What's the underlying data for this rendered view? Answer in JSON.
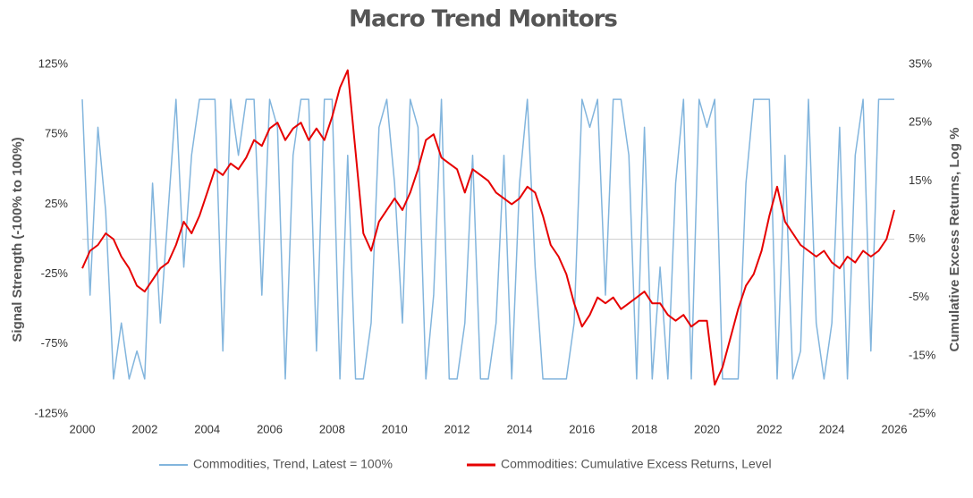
{
  "chart_data": {
    "type": "line",
    "title": "Macro Trend Monitors",
    "ylabel": "Signal Strength (-100% to 100%)",
    "y2label": "Cumulative Excess Returns, Log %",
    "xlim": [
      2000,
      2026
    ],
    "xticks": [
      2000,
      2002,
      2004,
      2006,
      2008,
      2010,
      2012,
      2014,
      2016,
      2018,
      2020,
      2022,
      2024,
      2026
    ],
    "ylim": [
      -125,
      125
    ],
    "yticks": [
      {
        "value": -125,
        "label": "-125%"
      },
      {
        "value": -75,
        "label": "-75%"
      },
      {
        "value": -25,
        "label": "-25%"
      },
      {
        "value": 25,
        "label": "25%"
      },
      {
        "value": 75,
        "label": "75%"
      },
      {
        "value": 125,
        "label": "125%"
      }
    ],
    "y2lim": [
      -25,
      35
    ],
    "y2ticks": [
      {
        "value": -25,
        "label": "-25%"
      },
      {
        "value": -15,
        "label": "-15%"
      },
      {
        "value": -5,
        "label": "-5%"
      },
      {
        "value": 5,
        "label": "5%"
      },
      {
        "value": 15,
        "label": "15%"
      },
      {
        "value": 25,
        "label": "25%"
      },
      {
        "value": 35,
        "label": "35%"
      }
    ],
    "legend": "bottom",
    "x": [
      2000,
      2000.25,
      2000.5,
      2000.75,
      2001,
      2001.25,
      2001.5,
      2001.75,
      2002,
      2002.25,
      2002.5,
      2002.75,
      2003,
      2003.25,
      2003.5,
      2003.75,
      2004,
      2004.25,
      2004.5,
      2004.75,
      2005,
      2005.25,
      2005.5,
      2005.75,
      2006,
      2006.25,
      2006.5,
      2006.75,
      2007,
      2007.25,
      2007.5,
      2007.75,
      2008,
      2008.25,
      2008.5,
      2008.75,
      2009,
      2009.25,
      2009.5,
      2009.75,
      2010,
      2010.25,
      2010.5,
      2010.75,
      2011,
      2011.25,
      2011.5,
      2011.75,
      2012,
      2012.25,
      2012.5,
      2012.75,
      2013,
      2013.25,
      2013.5,
      2013.75,
      2014,
      2014.25,
      2014.5,
      2014.75,
      2015,
      2015.25,
      2015.5,
      2015.75,
      2016,
      2016.25,
      2016.5,
      2016.75,
      2017,
      2017.25,
      2017.5,
      2017.75,
      2018,
      2018.25,
      2018.5,
      2018.75,
      2019,
      2019.25,
      2019.5,
      2019.75,
      2020,
      2020.25,
      2020.5,
      2020.75,
      2021,
      2021.25,
      2021.5,
      2021.75,
      2022,
      2022.25,
      2022.5,
      2022.75,
      2023,
      2023.25,
      2023.5,
      2023.75,
      2024,
      2024.25,
      2024.5,
      2024.75,
      2025,
      2025.25,
      2025.5,
      2025.75,
      2026
    ],
    "series": [
      {
        "name": "Commodities, Trend, Latest = 100%",
        "color": "#82b5dd",
        "axis": "y",
        "values": [
          100,
          -40,
          80,
          20,
          -100,
          -60,
          -100,
          -80,
          -100,
          40,
          -60,
          20,
          100,
          -20,
          60,
          100,
          100,
          100,
          -80,
          100,
          60,
          100,
          100,
          -40,
          100,
          80,
          -100,
          60,
          100,
          100,
          -80,
          100,
          100,
          -100,
          60,
          -100,
          -100,
          -60,
          80,
          100,
          40,
          -60,
          100,
          80,
          -100,
          -40,
          100,
          -100,
          -100,
          -60,
          60,
          -100,
          -100,
          -60,
          60,
          -100,
          40,
          100,
          -20,
          -100,
          -100,
          -100,
          -100,
          -60,
          100,
          80,
          100,
          -40,
          100,
          100,
          60,
          -100,
          80,
          -100,
          -20,
          -100,
          40,
          100,
          -100,
          100,
          80,
          100,
          -100,
          -100,
          -100,
          40,
          100,
          100,
          100,
          -100,
          60,
          -100,
          -80,
          100,
          -60,
          -100,
          -60,
          80,
          -100,
          60,
          100,
          -80,
          100,
          100,
          100
        ]
      },
      {
        "name": "Commodities: Cumulative Excess Returns, Level",
        "color": "#e60000",
        "axis": "y2",
        "values": [
          0,
          3,
          4,
          6,
          5,
          2,
          0,
          -3,
          -4,
          -2,
          0,
          1,
          4,
          8,
          6,
          9,
          13,
          17,
          16,
          18,
          17,
          19,
          22,
          21,
          24,
          25,
          22,
          24,
          25,
          22,
          24,
          22,
          26,
          31,
          34,
          20,
          6,
          3,
          8,
          10,
          12,
          10,
          13,
          17,
          22,
          23,
          19,
          18,
          17,
          13,
          17,
          16,
          15,
          13,
          12,
          11,
          12,
          14,
          13,
          9,
          4,
          2,
          -1,
          -6,
          -10,
          -8,
          -5,
          -6,
          -5,
          -7,
          -6,
          -5,
          -4,
          -6,
          -6,
          -8,
          -9,
          -8,
          -10,
          -9,
          -9,
          -20,
          -17,
          -12,
          -7,
          -3,
          -1,
          3,
          9,
          14,
          8,
          6,
          4,
          3,
          2,
          3,
          1,
          0,
          2,
          1,
          3,
          2,
          3,
          5,
          10
        ]
      }
    ]
  }
}
